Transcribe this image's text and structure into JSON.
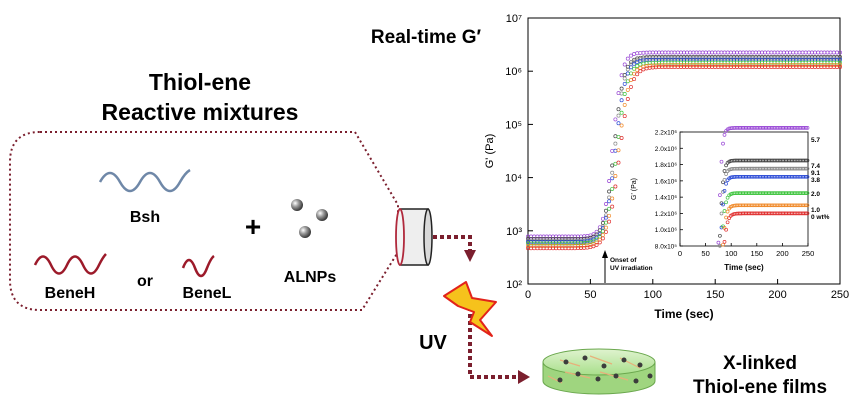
{
  "left": {
    "title_line1": "Thiol-ene",
    "title_line2": "Reactive mixtures",
    "bsh": "Bsh",
    "plus": "+",
    "alnps": "ALNPs",
    "beneh": "BeneH",
    "or": "or",
    "benel": "BeneL",
    "uv": "UV"
  },
  "right": {
    "title": "Real-time G′",
    "product_line1": "X-linked",
    "product_line2": "Thiol-ene films"
  },
  "chart_data": {
    "type": "scatter",
    "xlabel": "Time (sec)",
    "ylabel": "G' (Pa)",
    "xlim": [
      0,
      250
    ],
    "ylim": [
      100,
      10000000
    ],
    "yscale": "log",
    "x_ticks": [
      "0",
      "50",
      "100",
      "150",
      "200",
      "250"
    ],
    "y_ticks": [
      "10²",
      "10³",
      "10⁴",
      "10⁵",
      "10⁶",
      "10⁷"
    ],
    "annotation_line1": "Onset of",
    "annotation_line2": "UV irradiation",
    "annotation_x": 62,
    "series": [
      {
        "name": "5.7",
        "color": "#9a4ad6",
        "baseline": 780,
        "plateau": 2250000,
        "t0": 60,
        "k": 0.28
      },
      {
        "name": "7.4",
        "color": "#444444",
        "baseline": 700,
        "plateau": 1850000,
        "t0": 61,
        "k": 0.26
      },
      {
        "name": "9.1",
        "color": "#8a8a8a",
        "baseline": 650,
        "plateau": 1750000,
        "t0": 61.5,
        "k": 0.26
      },
      {
        "name": "3.8",
        "color": "#2a4ad6",
        "baseline": 620,
        "plateau": 1650000,
        "t0": 62,
        "k": 0.25
      },
      {
        "name": "2.0",
        "color": "#3ec43e",
        "baseline": 580,
        "plateau": 1450000,
        "t0": 63,
        "k": 0.24
      },
      {
        "name": "1.0",
        "color": "#f08a2a",
        "baseline": 520,
        "plateau": 1300000,
        "t0": 64,
        "k": 0.23
      },
      {
        "name": "0 wt%",
        "color": "#e03030",
        "baseline": 470,
        "plateau": 1200000,
        "t0": 65,
        "k": 0.22
      }
    ],
    "inset": {
      "xlabel": "Time (sec)",
      "ylabel": "G' (Pa)",
      "xlim": [
        0,
        250
      ],
      "ylim": [
        800000,
        2200000
      ],
      "x_ticks": [
        "0",
        "50",
        "100",
        "150",
        "200",
        "250"
      ],
      "y_ticks": [
        "8.0x10⁵",
        "1.0x10⁶",
        "1.2x10⁶",
        "1.4x10⁶",
        "1.6x10⁶",
        "1.8x10⁶",
        "2.0x10⁶",
        "2.2x10⁶"
      ]
    }
  },
  "colors": {
    "border": "#7b1f2e",
    "arrow": "#7b1f2e",
    "wave_blue": "#6f88a8",
    "wave_red": "#9c1a2a",
    "bolt_fill": "#f6c21c",
    "bolt_stroke": "#e2231a",
    "film": "#bde8a5"
  }
}
